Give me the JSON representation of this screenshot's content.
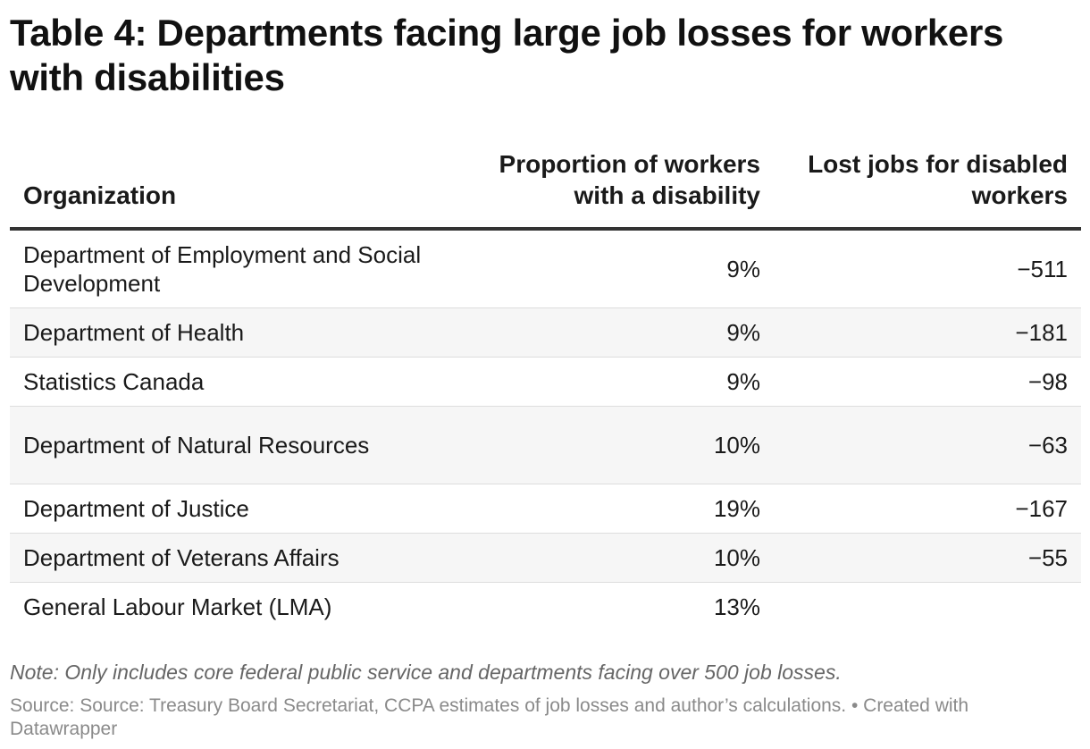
{
  "title": "Table 4: Departments facing large job losses for workers with disabilities",
  "chart_data": {
    "type": "table",
    "title": "Table 4: Departments facing large job losses for workers with disabilities",
    "columns": [
      "Organization",
      "Proportion of workers with a disability",
      "Lost jobs for disabled workers"
    ],
    "rows": [
      {
        "organization": "Department of Employment and Social Development",
        "proportion": "9%",
        "lost_jobs": "−511"
      },
      {
        "organization": "Department of Health",
        "proportion": "9%",
        "lost_jobs": "−181"
      },
      {
        "organization": "Statistics Canada",
        "proportion": "9%",
        "lost_jobs": "−98"
      },
      {
        "organization": "Department of Natural Resources",
        "proportion": "10%",
        "lost_jobs": "−63"
      },
      {
        "organization": "Department of Justice",
        "proportion": "19%",
        "lost_jobs": "−167"
      },
      {
        "organization": "Department of Veterans Affairs",
        "proportion": "10%",
        "lost_jobs": "−55"
      },
      {
        "organization": "General Labour Market (LMA)",
        "proportion": "13%",
        "lost_jobs": ""
      }
    ],
    "values": {
      "proportion_pct": [
        9,
        9,
        9,
        10,
        19,
        10,
        13
      ],
      "lost_jobs": [
        -511,
        -181,
        -98,
        -63,
        -167,
        -55,
        null
      ]
    }
  },
  "note": "Note: Only includes core federal public service and departments facing over 500 job losses.",
  "source": "Source: Source: Treasury Board Secretariat, CCPA estimates of job losses and author’s calculations. • Created with Datawrapper"
}
